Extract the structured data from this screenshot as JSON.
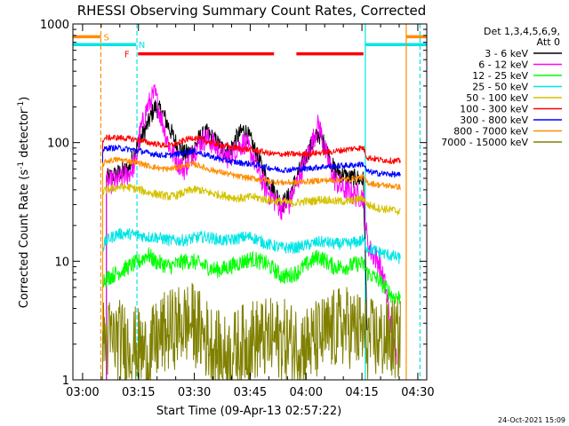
{
  "chart_data": {
    "type": "line",
    "title": "RHESSI Observing Summary Count Rates, Corrected",
    "xlabel": "Start Time (09-Apr-13 02:57:22)",
    "ylabel_main": "Corrected Count Rate (s",
    "ylabel_sup1": "-1",
    "ylabel_mid": " detector",
    "ylabel_sup2": "-1",
    "ylabel_end": ")",
    "yscale": "log",
    "ylim": [
      1,
      1000
    ],
    "xlim_minutes": [
      0,
      95
    ],
    "x_tick_labels": [
      {
        "label": "03:00",
        "minute": 2.6
      },
      {
        "label": "03:15",
        "minute": 17.6
      },
      {
        "label": "03:30",
        "minute": 32.6
      },
      {
        "label": "03:45",
        "minute": 47.6
      },
      {
        "label": "04:00",
        "minute": 62.6
      },
      {
        "label": "04:15",
        "minute": 77.6
      },
      {
        "label": "04:30",
        "minute": 92.6
      }
    ],
    "y_tick_labels": [
      {
        "label": "1",
        "value": 1
      },
      {
        "label": "10",
        "value": 10
      },
      {
        "label": "100",
        "value": 100
      },
      {
        "label": "1000",
        "value": 1000
      }
    ],
    "legend": {
      "header1": "Det 1,3,4,5,6,9,",
      "header2": "Att 0",
      "placement": "right"
    },
    "flags": [
      {
        "label": "S",
        "color": "#ff8c00",
        "y_value": 780,
        "segments": [
          [
            0,
            7.5
          ],
          [
            89.5,
            95
          ]
        ],
        "label_minute": 9
      },
      {
        "label": "N",
        "color": "#00e5e5",
        "y_value": 670,
        "segments": [
          [
            0,
            17
          ],
          [
            78.5,
            95
          ]
        ],
        "label_minute": 18.5
      },
      {
        "label": "F",
        "color": "#ff0000",
        "y_value": 560,
        "segments": [
          [
            17.5,
            54
          ],
          [
            60,
            78
          ]
        ],
        "label_minute": 14.5
      }
    ],
    "vertical_lines": [
      {
        "minute": 7.5,
        "color": "#ff8c00",
        "style": "dashed"
      },
      {
        "minute": 17.2,
        "color": "#00e5e5",
        "style": "dashed"
      },
      {
        "minute": 78.5,
        "color": "#00e5e5",
        "style": "solid"
      },
      {
        "minute": 89.5,
        "color": "#ff8c00",
        "style": "solid"
      },
      {
        "minute": 93.2,
        "color": "#00e5e5",
        "style": "dashed"
      }
    ],
    "series": [
      {
        "name": "3 - 6 keV",
        "color": "#000000",
        "x": [
          9,
          12,
          15,
          17,
          18,
          20,
          22,
          24,
          26,
          28,
          30,
          32,
          34,
          36,
          38,
          40,
          42,
          44,
          46,
          48,
          50,
          52,
          54,
          56,
          58,
          60,
          62,
          64,
          66,
          68,
          70,
          72,
          74,
          76,
          78,
          79
        ],
        "y": [
          50,
          55,
          60,
          90,
          105,
          140,
          200,
          180,
          130,
          95,
          80,
          85,
          110,
          120,
          105,
          90,
          85,
          110,
          130,
          100,
          70,
          50,
          40,
          30,
          35,
          50,
          70,
          95,
          120,
          90,
          60,
          55,
          50,
          50,
          48,
          2.5
        ],
        "noise": 0.08
      },
      {
        "name": "6 - 12 keV",
        "color": "#ff00ff",
        "x": [
          9,
          12,
          15,
          17,
          18,
          20,
          22,
          24,
          26,
          28,
          30,
          32,
          34,
          36,
          38,
          40,
          42,
          44,
          46,
          48,
          50,
          52,
          54,
          56,
          58,
          60,
          62,
          64,
          66,
          68,
          70,
          72,
          74,
          76,
          78,
          79,
          80,
          82,
          84,
          86,
          87
        ],
        "y": [
          45,
          48,
          55,
          70,
          120,
          200,
          260,
          150,
          90,
          70,
          60,
          80,
          100,
          110,
          95,
          80,
          75,
          90,
          100,
          80,
          55,
          40,
          33,
          28,
          30,
          45,
          65,
          95,
          145,
          80,
          50,
          42,
          38,
          36,
          35,
          15,
          12,
          10,
          6,
          2,
          1.5
        ],
        "noise": 0.1
      },
      {
        "name": "12 - 25 keV",
        "color": "#00ff00",
        "x": [
          8,
          9,
          12,
          15,
          18,
          20,
          22,
          24,
          26,
          28,
          30,
          32,
          34,
          36,
          38,
          40,
          42,
          44,
          46,
          48,
          50,
          52,
          54,
          56,
          58,
          60,
          62,
          64,
          66,
          68,
          70,
          72,
          74,
          76,
          78,
          79,
          82,
          86,
          88
        ],
        "y": [
          7,
          7.2,
          8,
          9,
          10,
          11.5,
          10,
          9.5,
          9,
          9.5,
          10,
          10,
          9.5,
          9,
          8.5,
          8.5,
          9,
          9.5,
          10,
          10.5,
          10,
          9.5,
          8.5,
          7.5,
          7.5,
          8,
          9,
          10,
          11,
          10,
          9,
          9,
          9,
          9.5,
          9.5,
          8,
          7,
          5,
          5
        ],
        "noise": 0.07
      },
      {
        "name": "25 - 50 keV",
        "color": "#00e5e5",
        "x": [
          8,
          9,
          12,
          15,
          18,
          20,
          22,
          24,
          26,
          28,
          30,
          32,
          34,
          36,
          38,
          40,
          42,
          44,
          46,
          48,
          50,
          52,
          54,
          56,
          58,
          60,
          62,
          64,
          66,
          68,
          70,
          72,
          74,
          76,
          78,
          79,
          82,
          86,
          88
        ],
        "y": [
          13,
          15,
          17,
          17,
          16.5,
          16,
          16,
          15.5,
          15,
          15,
          15,
          15.5,
          16,
          16,
          15.5,
          15,
          15,
          15.5,
          16,
          16,
          15,
          14,
          13.5,
          13,
          13,
          13,
          13.5,
          14,
          14.5,
          14.5,
          14,
          14,
          14,
          14.5,
          15,
          13,
          12,
          11,
          10.5
        ],
        "noise": 0.05
      },
      {
        "name": "50 - 100 keV",
        "color": "#d4c200",
        "x": [
          8,
          9,
          12,
          15,
          18,
          20,
          22,
          24,
          26,
          28,
          30,
          32,
          34,
          36,
          38,
          40,
          42,
          44,
          46,
          48,
          50,
          52,
          54,
          56,
          58,
          60,
          62,
          64,
          66,
          68,
          70,
          72,
          74,
          76,
          78,
          79,
          82,
          86,
          88
        ],
        "y": [
          38,
          40,
          42,
          42,
          40,
          38,
          37,
          36,
          35,
          36,
          38,
          40,
          40,
          38,
          37,
          36,
          35,
          34,
          34,
          35,
          34,
          33,
          32,
          32,
          31,
          31,
          32,
          32,
          33,
          33,
          32,
          32,
          32,
          33,
          34,
          30,
          28,
          27,
          26
        ],
        "noise": 0.035
      },
      {
        "name": "100 - 300 keV",
        "color": "#ff0000",
        "x": [
          8,
          9,
          12,
          15,
          18,
          20,
          22,
          24,
          26,
          28,
          30,
          32,
          34,
          36,
          38,
          40,
          42,
          44,
          46,
          48,
          50,
          52,
          54,
          56,
          58,
          60,
          62,
          64,
          66,
          68,
          70,
          72,
          74,
          76,
          78,
          79,
          82,
          86,
          88
        ],
        "y": [
          105,
          110,
          110,
          108,
          105,
          100,
          98,
          95,
          95,
          98,
          105,
          110,
          108,
          102,
          98,
          95,
          92,
          90,
          88,
          87,
          85,
          82,
          80,
          80,
          80,
          80,
          80,
          81,
          82,
          83,
          84,
          86,
          88,
          90,
          90,
          75,
          72,
          70,
          70
        ],
        "noise": 0.025
      },
      {
        "name": "300 - 800 keV",
        "color": "#0000ff",
        "x": [
          8,
          9,
          12,
          15,
          18,
          20,
          22,
          24,
          26,
          28,
          30,
          32,
          34,
          36,
          38,
          40,
          42,
          44,
          46,
          48,
          50,
          52,
          54,
          56,
          58,
          60,
          62,
          64,
          66,
          68,
          70,
          72,
          74,
          76,
          78,
          79,
          82,
          86,
          88
        ],
        "y": [
          85,
          90,
          90,
          88,
          85,
          82,
          80,
          78,
          78,
          80,
          82,
          85,
          82,
          78,
          75,
          72,
          70,
          68,
          67,
          66,
          64,
          62,
          60,
          59,
          59,
          60,
          60,
          61,
          62,
          63,
          63,
          64,
          64,
          65,
          66,
          57,
          55,
          54,
          53
        ],
        "noise": 0.025
      },
      {
        "name": "800 - 7000 keV",
        "color": "#ff8c00",
        "x": [
          8,
          9,
          12,
          15,
          18,
          20,
          22,
          24,
          26,
          28,
          30,
          32,
          34,
          36,
          38,
          40,
          42,
          44,
          46,
          48,
          50,
          52,
          54,
          56,
          58,
          60,
          62,
          64,
          66,
          68,
          70,
          72,
          74,
          76,
          78,
          79,
          82,
          86,
          88
        ],
        "y": [
          65,
          70,
          72,
          70,
          67,
          64,
          62,
          60,
          60,
          62,
          64,
          66,
          64,
          60,
          58,
          56,
          54,
          52,
          51,
          50,
          49,
          48,
          47,
          46,
          46,
          46,
          47,
          47,
          48,
          48,
          48,
          49,
          49,
          50,
          51,
          46,
          44,
          43,
          42
        ],
        "noise": 0.025
      },
      {
        "name": "7000 - 15000 keV",
        "color": "#808000",
        "x": [
          8,
          9,
          12,
          15,
          18,
          20,
          22,
          24,
          26,
          28,
          30,
          32,
          34,
          36,
          38,
          40,
          42,
          44,
          46,
          48,
          50,
          52,
          54,
          56,
          58,
          60,
          62,
          64,
          66,
          68,
          70,
          72,
          74,
          76,
          78,
          79,
          82,
          86,
          88
        ],
        "y": [
          2.2,
          2.2,
          2.2,
          2,
          1.8,
          1.6,
          2,
          2.4,
          2.6,
          2.8,
          3,
          3,
          2.6,
          2.2,
          1.9,
          1.6,
          1.6,
          1.8,
          2,
          2.2,
          2.2,
          2.2,
          2.2,
          2.2,
          2.1,
          2,
          2,
          2,
          2.2,
          2.4,
          2.6,
          2.8,
          2.8,
          2.6,
          2.4,
          2.2,
          2.2,
          2.2,
          2.2
        ],
        "noise": 0.35
      }
    ],
    "footer_timestamp": "24-Oct-2021 15:09"
  }
}
